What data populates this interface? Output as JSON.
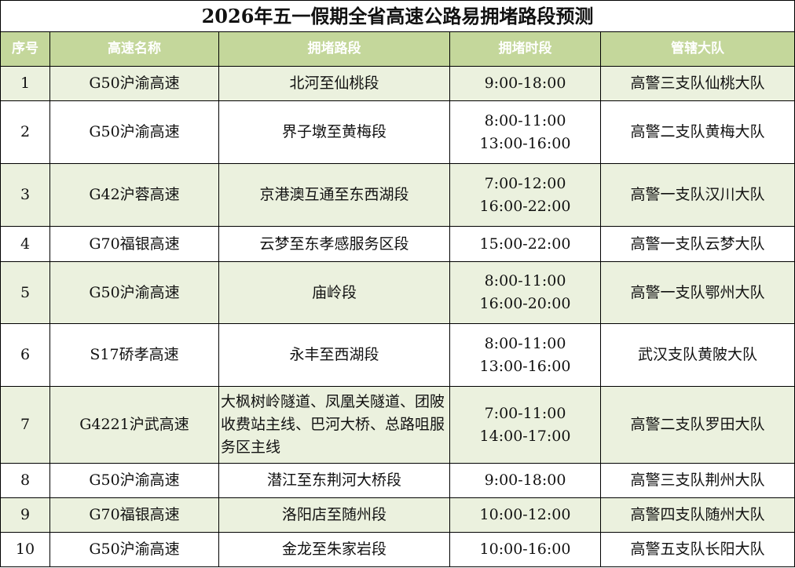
{
  "title": "2026年五一假期全省高速公路易拥堵路段预测",
  "headers": [
    "序号",
    "高速名称",
    "拥堵路段",
    "拥堵时段",
    "管辖大队"
  ],
  "header_color": "#C4D79B",
  "row_alt_color": "#EBF1DE",
  "rows": [
    {
      "no": "1",
      "highway": "G50沪渝高速",
      "section": "北河至仙桃段",
      "times": [
        "9:00-18:00"
      ],
      "unit": "高警三支队仙桃大队"
    },
    {
      "no": "2",
      "highway": "G50沪渝高速",
      "section": "界子墩至黄梅段",
      "times": [
        "8:00-11:00",
        "13:00-16:00"
      ],
      "unit": "高警二支队黄梅大队"
    },
    {
      "no": "3",
      "highway": "G42沪蓉高速",
      "section": "京港澳互通至东西湖段",
      "times": [
        "7:00-12:00",
        "16:00-22:00"
      ],
      "unit": "高警一支队汉川大队"
    },
    {
      "no": "4",
      "highway": "G70福银高速",
      "section": "云梦至东孝感服务区段",
      "times": [
        "15:00-22:00"
      ],
      "unit": "高警一支队云梦大队"
    },
    {
      "no": "5",
      "highway": "G50沪渝高速",
      "section": "庙岭段",
      "times": [
        "8:00-11:00",
        "16:00-20:00"
      ],
      "unit": "高警一支队鄂州大队"
    },
    {
      "no": "6",
      "highway": "S17硚孝高速",
      "section": "永丰至西湖段",
      "times": [
        "8:00-11:00",
        "13:00-16:00"
      ],
      "unit": "武汉支队黄陂大队"
    },
    {
      "no": "7",
      "highway": "G4221沪武高速",
      "section": "大枫树岭隧道、凤凰关隧道、团陂收费站主线、巴河大桥、总路咀服务区主线",
      "times": [
        "7:00-11:00",
        "14:00-17:00"
      ],
      "unit": "高警二支队罗田大队"
    },
    {
      "no": "8",
      "highway": "G50沪渝高速",
      "section": "潜江至东荆河大桥段",
      "times": [
        "9:00-18:00"
      ],
      "unit": "高警三支队荆州大队"
    },
    {
      "no": "9",
      "highway": "G70福银高速",
      "section": "洛阳店至随州段",
      "times": [
        "10:00-12:00"
      ],
      "unit": "高警四支队随州大队"
    },
    {
      "no": "10",
      "highway": "G50沪渝高速",
      "section": "金龙至朱家岩段",
      "times": [
        "10:00-16:00"
      ],
      "unit": "高警五支队长阳大队"
    }
  ]
}
